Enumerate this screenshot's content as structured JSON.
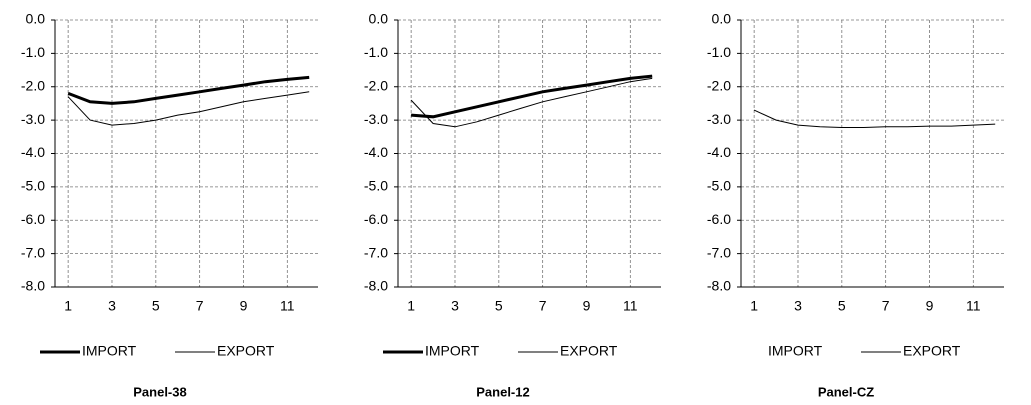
{
  "chart_data": [
    {
      "type": "line",
      "title": "Panel-38",
      "x": [
        1,
        2,
        3,
        4,
        5,
        6,
        7,
        8,
        9,
        10,
        11,
        12
      ],
      "xlim": [
        0.4,
        12.4
      ],
      "xticks": [
        1,
        3,
        5,
        7,
        9,
        11
      ],
      "ylim": [
        -8,
        0
      ],
      "yticks": [
        {
          "value": 0,
          "label": "0.0"
        },
        {
          "value": -1,
          "label": "-1.0"
        },
        {
          "value": -2,
          "label": "-2.0"
        },
        {
          "value": -3,
          "label": "-3.0"
        },
        {
          "value": -4,
          "label": "-4.0"
        },
        {
          "value": -5,
          "label": "-5.0"
        },
        {
          "value": -6,
          "label": "-6.0"
        },
        {
          "value": -7,
          "label": "-7.0"
        },
        {
          "value": -8,
          "label": "-8.0"
        }
      ],
      "grid": true,
      "series": [
        {
          "name": "IMPORT",
          "color": "#000000",
          "line_width": 3,
          "values": [
            -2.2,
            -2.45,
            -2.5,
            -2.45,
            -2.35,
            -2.25,
            -2.15,
            -2.05,
            -1.95,
            -1.85,
            -1.78,
            -1.72
          ]
        },
        {
          "name": "EXPORT",
          "color": "#000000",
          "line_width": 1,
          "values": [
            -2.3,
            -3.0,
            -3.15,
            -3.1,
            -3.0,
            -2.85,
            -2.75,
            -2.6,
            -2.45,
            -2.35,
            -2.25,
            -2.15
          ]
        }
      ]
    },
    {
      "type": "line",
      "title": "Panel-12",
      "x": [
        1,
        2,
        3,
        4,
        5,
        6,
        7,
        8,
        9,
        10,
        11,
        12
      ],
      "xlim": [
        0.4,
        12.4
      ],
      "xticks": [
        1,
        3,
        5,
        7,
        9,
        11
      ],
      "ylim": [
        -8,
        0
      ],
      "yticks": [
        {
          "value": 0,
          "label": "0.0"
        },
        {
          "value": -1,
          "label": "-1.0"
        },
        {
          "value": -2,
          "label": "-2.0"
        },
        {
          "value": -3,
          "label": "-3.0"
        },
        {
          "value": -4,
          "label": "-4.0"
        },
        {
          "value": -5,
          "label": "-5.0"
        },
        {
          "value": -6,
          "label": "-6.0"
        },
        {
          "value": -7,
          "label": "-7.0"
        },
        {
          "value": -8,
          "label": "-8.0"
        }
      ],
      "grid": true,
      "series": [
        {
          "name": "IMPORT",
          "color": "#000000",
          "line_width": 3,
          "values": [
            -2.85,
            -2.9,
            -2.75,
            -2.6,
            -2.45,
            -2.3,
            -2.15,
            -2.05,
            -1.95,
            -1.85,
            -1.75,
            -1.68
          ]
        },
        {
          "name": "EXPORT",
          "color": "#000000",
          "line_width": 1,
          "values": [
            -2.4,
            -3.1,
            -3.2,
            -3.05,
            -2.85,
            -2.65,
            -2.45,
            -2.3,
            -2.15,
            -2.0,
            -1.85,
            -1.75
          ]
        }
      ]
    },
    {
      "type": "line",
      "title": "Panel-CZ",
      "x": [
        1,
        2,
        3,
        4,
        5,
        6,
        7,
        8,
        9,
        10,
        11,
        12
      ],
      "xlim": [
        0.4,
        12.4
      ],
      "xticks": [
        1,
        3,
        5,
        7,
        9,
        11
      ],
      "ylim": [
        -8,
        0
      ],
      "yticks": [
        {
          "value": 0,
          "label": "0.0"
        },
        {
          "value": -1,
          "label": "-1.0"
        },
        {
          "value": -2,
          "label": "-2.0"
        },
        {
          "value": -3,
          "label": "-3.0"
        },
        {
          "value": -4,
          "label": "-4.0"
        },
        {
          "value": -5,
          "label": "-5.0"
        },
        {
          "value": -6,
          "label": "-6.0"
        },
        {
          "value": -7,
          "label": "-7.0"
        },
        {
          "value": -8,
          "label": "-8.0"
        }
      ],
      "grid": true,
      "series": [
        {
          "name": "IMPORT",
          "color": "#000000",
          "line_width": 3,
          "values": [
            null,
            null,
            null,
            null,
            null,
            null,
            null,
            null,
            null,
            null,
            null,
            null
          ]
        },
        {
          "name": "EXPORT",
          "color": "#000000",
          "line_width": 1,
          "values": [
            -2.7,
            -3.0,
            -3.15,
            -3.2,
            -3.22,
            -3.22,
            -3.2,
            -3.2,
            -3.18,
            -3.18,
            -3.15,
            -3.12
          ]
        }
      ]
    }
  ]
}
